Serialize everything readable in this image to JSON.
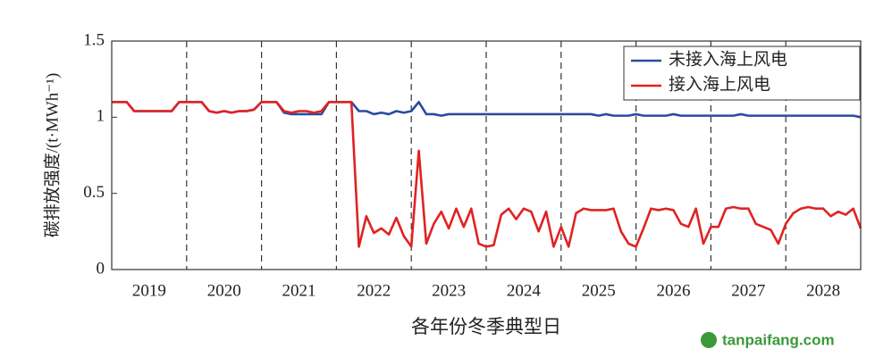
{
  "chart_data": {
    "type": "line",
    "ylabel": "碳排放强度/(t·MWh⁻¹)",
    "xlabel": "各年份冬季典型日",
    "watermark": "tanpaifang.com",
    "xlim": [
      0,
      100
    ],
    "xticks": [
      {
        "value": 5,
        "label": "2019"
      },
      {
        "value": 15,
        "label": "2020"
      },
      {
        "value": 25,
        "label": "2021"
      },
      {
        "value": 35,
        "label": "2022"
      },
      {
        "value": 45,
        "label": "2023"
      },
      {
        "value": 55,
        "label": "2024"
      },
      {
        "value": 65,
        "label": "2025"
      },
      {
        "value": 75,
        "label": "2026"
      },
      {
        "value": 85,
        "label": "2027"
      },
      {
        "value": 95,
        "label": "2028"
      }
    ],
    "vlines": [
      10,
      20,
      30,
      40,
      50,
      60,
      70,
      80,
      90
    ],
    "ylim": [
      0,
      1.5
    ],
    "yticks": [
      0,
      0.5,
      1,
      1.5
    ],
    "legend": "upper right",
    "x": [
      0,
      1,
      2,
      3,
      4,
      5,
      6,
      7,
      8,
      9,
      10,
      11,
      12,
      13,
      14,
      15,
      16,
      17,
      18,
      19,
      20,
      21,
      22,
      23,
      24,
      25,
      26,
      27,
      28,
      29,
      30,
      31,
      32,
      33,
      34,
      35,
      36,
      37,
      38,
      39,
      40,
      41,
      42,
      43,
      44,
      45,
      46,
      47,
      48,
      49,
      50,
      51,
      52,
      53,
      54,
      55,
      56,
      57,
      58,
      59,
      60,
      61,
      62,
      63,
      64,
      65,
      66,
      67,
      68,
      69,
      70,
      71,
      72,
      73,
      74,
      75,
      76,
      77,
      78,
      79,
      80,
      81,
      82,
      83,
      84,
      85,
      86,
      87,
      88,
      89,
      90,
      91,
      92,
      93,
      94,
      95,
      96,
      97,
      98,
      99,
      100
    ],
    "series": [
      {
        "name": "未接入海上风电",
        "color": "#2b4ba0",
        "values": [
          1.1,
          1.1,
          1.1,
          1.04,
          1.04,
          1.04,
          1.04,
          1.04,
          1.04,
          1.1,
          1.1,
          1.1,
          1.1,
          1.04,
          1.03,
          1.04,
          1.03,
          1.04,
          1.04,
          1.05,
          1.1,
          1.1,
          1.1,
          1.03,
          1.02,
          1.02,
          1.02,
          1.02,
          1.02,
          1.1,
          1.1,
          1.1,
          1.1,
          1.04,
          1.04,
          1.02,
          1.03,
          1.02,
          1.04,
          1.03,
          1.04,
          1.1,
          1.02,
          1.02,
          1.01,
          1.02,
          1.02,
          1.02,
          1.02,
          1.02,
          1.02,
          1.02,
          1.02,
          1.02,
          1.02,
          1.02,
          1.02,
          1.02,
          1.02,
          1.02,
          1.02,
          1.02,
          1.02,
          1.02,
          1.02,
          1.01,
          1.02,
          1.01,
          1.01,
          1.01,
          1.02,
          1.01,
          1.01,
          1.01,
          1.01,
          1.02,
          1.01,
          1.01,
          1.01,
          1.01,
          1.01,
          1.01,
          1.01,
          1.01,
          1.02,
          1.01,
          1.01,
          1.01,
          1.01,
          1.01,
          1.01,
          1.01,
          1.01,
          1.01,
          1.01,
          1.01,
          1.01,
          1.01,
          1.01,
          1.01,
          1.0
        ]
      },
      {
        "name": "接入海上风电",
        "color": "#e02222",
        "values": [
          1.1,
          1.1,
          1.1,
          1.04,
          1.04,
          1.04,
          1.04,
          1.04,
          1.04,
          1.1,
          1.1,
          1.1,
          1.1,
          1.04,
          1.03,
          1.04,
          1.03,
          1.04,
          1.04,
          1.05,
          1.1,
          1.1,
          1.1,
          1.04,
          1.03,
          1.04,
          1.04,
          1.03,
          1.04,
          1.1,
          1.1,
          1.1,
          1.1,
          0.15,
          0.35,
          0.24,
          0.27,
          0.23,
          0.34,
          0.22,
          0.15,
          0.78,
          0.17,
          0.3,
          0.38,
          0.27,
          0.4,
          0.28,
          0.4,
          0.17,
          0.15,
          0.16,
          0.36,
          0.4,
          0.33,
          0.4,
          0.38,
          0.25,
          0.38,
          0.15,
          0.28,
          0.15,
          0.37,
          0.4,
          0.39,
          0.39,
          0.39,
          0.4,
          0.25,
          0.17,
          0.15,
          0.27,
          0.4,
          0.39,
          0.4,
          0.39,
          0.3,
          0.28,
          0.4,
          0.17,
          0.28,
          0.28,
          0.4,
          0.41,
          0.4,
          0.4,
          0.3,
          0.28,
          0.26,
          0.17,
          0.3,
          0.37,
          0.4,
          0.41,
          0.4,
          0.4,
          0.35,
          0.38,
          0.36,
          0.4,
          0.27
        ]
      }
    ]
  }
}
